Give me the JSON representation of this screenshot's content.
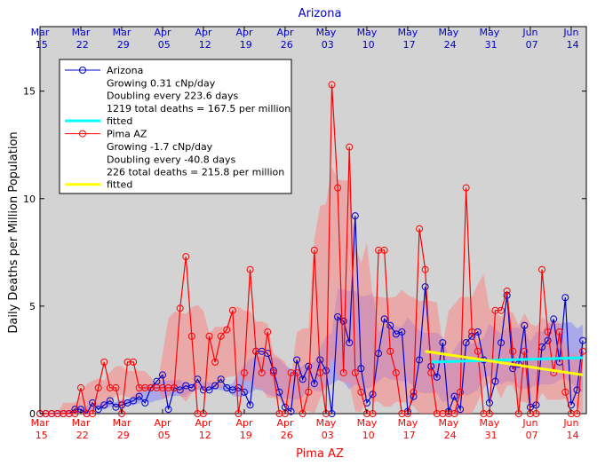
{
  "chart_data": {
    "type": "line",
    "title": "Arizona",
    "xlabel": "Pima AZ",
    "ylabel": "Daily Deaths per Million Population",
    "x": [
      0,
      1,
      2,
      3,
      4,
      5,
      6,
      7,
      8,
      9,
      10,
      11,
      12,
      13,
      14,
      15,
      16,
      17,
      18,
      19,
      20,
      21,
      22,
      23,
      24,
      25,
      26,
      27,
      28,
      29,
      30,
      31,
      32,
      33,
      34,
      35,
      36,
      37,
      38,
      39,
      40,
      41,
      42,
      43,
      44,
      45,
      46,
      47,
      48,
      49,
      50,
      51,
      52,
      53,
      54,
      55,
      56,
      57,
      58,
      59,
      60,
      61,
      62,
      63,
      64,
      65,
      66,
      67,
      68,
      69,
      70,
      71,
      72,
      73,
      74,
      75,
      76,
      77,
      78,
      79,
      80,
      81,
      82,
      83,
      84,
      85,
      86,
      87,
      88,
      89,
      90,
      91,
      92,
      93
    ],
    "xlim": [
      0,
      93.6
    ],
    "xticks": [
      {
        "value": 0,
        "label": "Mar 15"
      },
      {
        "value": 7,
        "label": "Mar 22"
      },
      {
        "value": 14,
        "label": "Mar 29"
      },
      {
        "value": 21,
        "label": "Apr 05"
      },
      {
        "value": 28,
        "label": "Apr 12"
      },
      {
        "value": 35,
        "label": "Apr 19"
      },
      {
        "value": 42,
        "label": "Apr 26"
      },
      {
        "value": 49,
        "label": "May 03"
      },
      {
        "value": 56,
        "label": "May 10"
      },
      {
        "value": 63,
        "label": "May 17"
      },
      {
        "value": 70,
        "label": "May 24"
      },
      {
        "value": 77,
        "label": "May 31"
      },
      {
        "value": 84,
        "label": "Jun 07"
      },
      {
        "value": 91,
        "label": "Jun 14"
      }
    ],
    "ylim": [
      0,
      18
    ],
    "yticks": [
      0,
      5,
      10,
      15
    ],
    "series": [
      {
        "name": "Arizona",
        "color": "#0000cc",
        "band_color": "#8080ff",
        "notes": [
          "Growing 0.31 cNp/day",
          "Doubling every 223.6 days",
          "1219 total deaths = 167.5 per million"
        ],
        "values": [
          0,
          0,
          0,
          0,
          0,
          0,
          0.2,
          0.2,
          0,
          0.5,
          0.2,
          0.4,
          0.6,
          0.3,
          0.4,
          0.5,
          0.6,
          0.8,
          0.5,
          1.2,
          1.5,
          1.8,
          0.2,
          1.2,
          1.1,
          1.3,
          1.2,
          1.6,
          1.1,
          1.1,
          1.3,
          1.6,
          1.2,
          1.1,
          1.2,
          1.0,
          0.4,
          2.9,
          2.9,
          2.8,
          2.0,
          1.0,
          0.3,
          0.1,
          2.5,
          1.6,
          2.2,
          1.4,
          2.5,
          2.0,
          0,
          4.5,
          4.3,
          3.3,
          9.2,
          2.1,
          0.5,
          0.9,
          2.8,
          4.4,
          4.1,
          3.7,
          3.8,
          0.1,
          0.8,
          2.5,
          5.9,
          2.2,
          1.7,
          3.3,
          0.1,
          0.8,
          0.2,
          3.3,
          3.6,
          3.8,
          2.5,
          0.5,
          1.5,
          3.3,
          5.5,
          2.1,
          2.3,
          4.1,
          0.3,
          0.4,
          3.1,
          3.4,
          4.4,
          2.4,
          5.4,
          0.4,
          1.1,
          3.4
        ],
        "fit": {
          "name": "fitted",
          "color": "#00ffff",
          "x": [
            67,
            93
          ],
          "values": [
            2.4,
            2.6
          ]
        }
      },
      {
        "name": "Pima AZ",
        "color": "#ff0000",
        "band_color": "#ff8080",
        "notes": [
          "Growing -1.7 cNp/day",
          "Doubling every -40.8 days",
          "226 total deaths = 215.8 per million"
        ],
        "values": [
          0,
          0,
          0,
          0,
          0,
          0,
          0,
          1.2,
          0,
          0,
          1.2,
          2.4,
          1.2,
          1.2,
          0,
          2.4,
          2.4,
          1.2,
          1.2,
          1.2,
          1.2,
          1.2,
          1.2,
          1.2,
          4.9,
          7.3,
          3.6,
          0,
          0,
          3.6,
          2.4,
          3.6,
          3.9,
          4.8,
          0,
          1.9,
          6.7,
          2.9,
          1.9,
          3.8,
          1.9,
          0,
          0,
          1.9,
          1.9,
          0,
          1.0,
          7.6,
          1.9,
          0,
          15.3,
          10.5,
          1.9,
          12.4,
          1.9,
          1.0,
          0,
          0,
          7.6,
          7.6,
          2.9,
          1.9,
          0,
          0,
          1.0,
          8.6,
          6.7,
          1.9,
          0,
          0,
          0,
          0,
          1.0,
          10.5,
          3.8,
          2.9,
          0,
          0,
          4.8,
          4.8,
          5.7,
          2.9,
          0,
          2.9,
          0,
          0,
          6.7,
          3.8,
          1.9,
          3.8,
          1.0,
          0,
          0,
          2.9
        ],
        "fit": {
          "name": "fitted",
          "color": "#ffff00",
          "x": [
            66,
            93
          ],
          "values": [
            2.9,
            1.8
          ]
        }
      }
    ]
  }
}
